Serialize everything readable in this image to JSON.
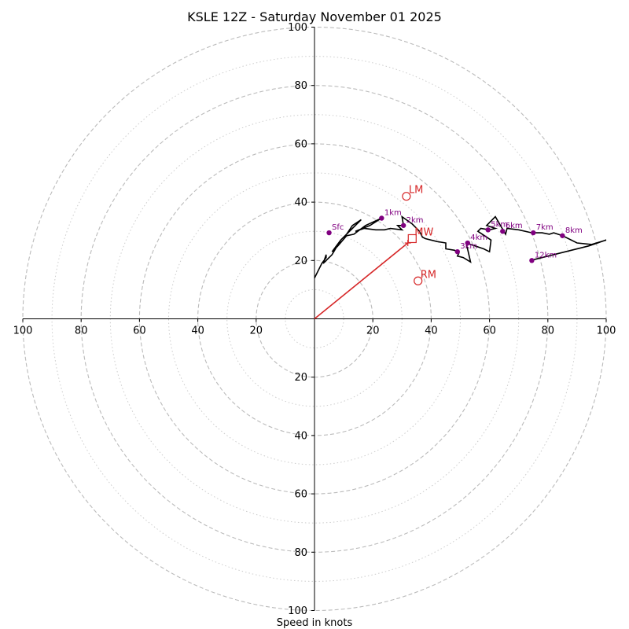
{
  "chart_data": {
    "type": "hodograph",
    "title": "KSLE 12Z - Saturday November 01 2025",
    "xlabel": "Speed in knots",
    "units": "knots",
    "xlim": [
      -100,
      100
    ],
    "ylim": [
      -100,
      100
    ],
    "ring_major_speeds": [
      20,
      40,
      60,
      80,
      100
    ],
    "ring_minor_speeds": [
      10,
      30,
      50,
      70,
      90
    ],
    "x_tick_values": [
      -100,
      -80,
      -60,
      -40,
      -20,
      20,
      40,
      60,
      80,
      100
    ],
    "x_tick_labels": [
      "100",
      "80",
      "60",
      "40",
      "20",
      "20",
      "40",
      "60",
      "80",
      "100"
    ],
    "y_tick_values": [
      100,
      80,
      60,
      40,
      20,
      -20,
      -40,
      -60,
      -80,
      -100
    ],
    "y_tick_labels": [
      "100",
      "80",
      "60",
      "40",
      "20",
      "20",
      "40",
      "60",
      "80",
      "100"
    ],
    "trace": [
      [
        0,
        14
      ],
      [
        2.5,
        19
      ],
      [
        4,
        21
      ],
      [
        4,
        22
      ],
      [
        3,
        19
      ],
      [
        6,
        22
      ],
      [
        9,
        27
      ],
      [
        11,
        29
      ],
      [
        13,
        32
      ],
      [
        16,
        34
      ],
      [
        13,
        31
      ],
      [
        9,
        27
      ],
      [
        6,
        23
      ],
      [
        8,
        25
      ],
      [
        11,
        28.5
      ],
      [
        13.5,
        29
      ],
      [
        17.5,
        32
      ],
      [
        23,
        34.5
      ],
      [
        19,
        32
      ],
      [
        14,
        30
      ],
      [
        17,
        31
      ],
      [
        21,
        30.5
      ],
      [
        24,
        30.5
      ],
      [
        26,
        31
      ],
      [
        30,
        30.5
      ],
      [
        28.5,
        32
      ],
      [
        30.5,
        32
      ],
      [
        30,
        35
      ],
      [
        33.5,
        32.5
      ],
      [
        36,
        30
      ],
      [
        37,
        28
      ],
      [
        38,
        27.5
      ],
      [
        42,
        26.5
      ],
      [
        45,
        26
      ],
      [
        45,
        24
      ],
      [
        48,
        23.5
      ],
      [
        49.5,
        22.5
      ],
      [
        49,
        21.5
      ],
      [
        51,
        21
      ],
      [
        53.5,
        19.5
      ],
      [
        52,
        26
      ],
      [
        58,
        24
      ],
      [
        60,
        23
      ],
      [
        60.5,
        27
      ],
      [
        56,
        30
      ],
      [
        57,
        31
      ],
      [
        60,
        30.5
      ],
      [
        62,
        31
      ],
      [
        59,
        32
      ],
      [
        62,
        35
      ],
      [
        65.5,
        29
      ],
      [
        66,
        31
      ],
      [
        70,
        30.5
      ],
      [
        74.5,
        29.5
      ],
      [
        78,
        29.5
      ],
      [
        80.5,
        29
      ],
      [
        82,
        29.5
      ],
      [
        85,
        28.5
      ],
      [
        90,
        26
      ],
      [
        95,
        25.5
      ],
      [
        100,
        27
      ],
      [
        94,
        25
      ],
      [
        86,
        23
      ],
      [
        74,
        20
      ]
    ],
    "height_markers": [
      {
        "label": "Sfc",
        "u": 5,
        "v": 29.5
      },
      {
        "label": "1km",
        "u": 23,
        "v": 34.5
      },
      {
        "label": "2km",
        "u": 30.5,
        "v": 32
      },
      {
        "label": "3km",
        "u": 49,
        "v": 23
      },
      {
        "label": "4km",
        "u": 52.5,
        "v": 26
      },
      {
        "label": "5km",
        "u": 59.5,
        "v": 30.5
      },
      {
        "label": "6km",
        "u": 64.5,
        "v": 30
      },
      {
        "label": "7km",
        "u": 75,
        "v": 29.5
      },
      {
        "label": "8km",
        "u": 85,
        "v": 28.5
      },
      {
        "label": "12km",
        "u": 74.5,
        "v": 20
      }
    ],
    "storm_motion": {
      "vector_end": {
        "u": 32,
        "v": 26
      },
      "points": [
        {
          "label": "LM",
          "u": 31.5,
          "v": 42,
          "marker": "circle"
        },
        {
          "label": "MW",
          "u": 33.5,
          "v": 27.5,
          "marker": "square"
        },
        {
          "label": "RM",
          "u": 35.5,
          "v": 13,
          "marker": "circle"
        }
      ]
    },
    "colors": {
      "trace": "#000000",
      "height_marker": "#800080",
      "storm_motion": "#d62728",
      "ring_major": "#bbbbbb",
      "ring_minor": "#cccccc",
      "axis": "#000000"
    }
  }
}
